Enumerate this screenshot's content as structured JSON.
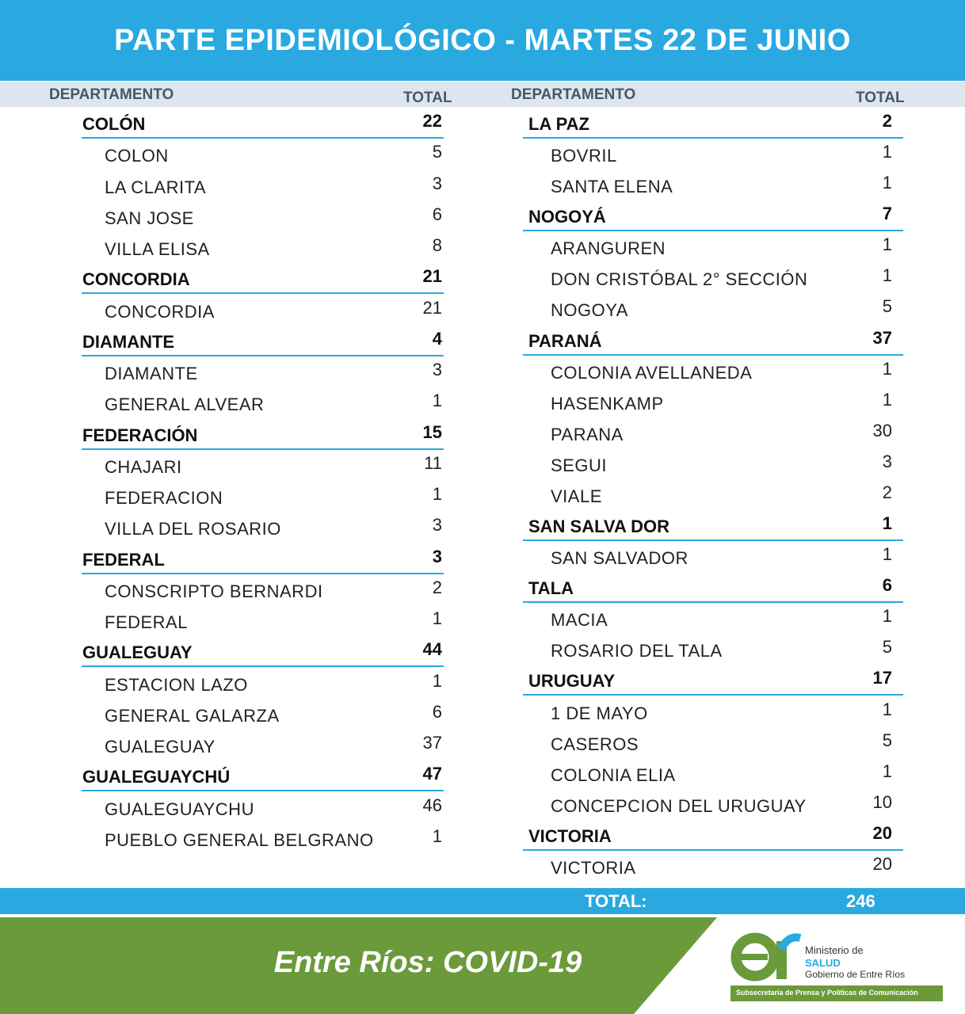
{
  "header": {
    "title": "PARTE EPIDEMIOLÓGICO - MARTES 22 DE JUNIO"
  },
  "table": {
    "headers": [
      [
        "DEPARTAMENTO",
        "TOTAL"
      ],
      [
        "DEPARTAMENTO",
        "TOTAL"
      ]
    ],
    "columns": [
      [
        {
          "name": "COLÓN",
          "total": 22,
          "localities": [
            [
              "COLON",
              5
            ],
            [
              "LA CLARITA",
              3
            ],
            [
              "SAN JOSE",
              6
            ],
            [
              "VILLA ELISA",
              8
            ]
          ]
        },
        {
          "name": "CONCORDIA",
          "total": 21,
          "localities": [
            [
              "CONCORDIA",
              21
            ]
          ]
        },
        {
          "name": "DIAMANTE",
          "total": 4,
          "localities": [
            [
              "DIAMANTE",
              3
            ],
            [
              "GENERAL ALVEAR",
              1
            ]
          ]
        },
        {
          "name": "FEDERACIÓN",
          "total": 15,
          "localities": [
            [
              "CHAJARI",
              11
            ],
            [
              "FEDERACION",
              1
            ],
            [
              "VILLA DEL ROSARIO",
              3
            ]
          ]
        },
        {
          "name": "FEDERAL",
          "total": 3,
          "localities": [
            [
              "CONSCRIPTO BERNARDI",
              2
            ],
            [
              "FEDERAL",
              1
            ]
          ]
        },
        {
          "name": "GUALEGUAY",
          "total": 44,
          "localities": [
            [
              "ESTACION LAZO",
              1
            ],
            [
              "GENERAL GALARZA",
              6
            ],
            [
              "GUALEGUAY",
              37
            ]
          ]
        },
        {
          "name": "GUALEGUAYCHÚ",
          "total": 47,
          "localities": [
            [
              "GUALEGUAYCHU",
              46
            ],
            [
              "PUEBLO GENERAL BELGRANO",
              1
            ]
          ]
        }
      ],
      [
        {
          "name": "LA PAZ",
          "total": 2,
          "localities": [
            [
              "BOVRIL",
              1
            ],
            [
              "SANTA ELENA",
              1
            ]
          ]
        },
        {
          "name": "NOGOYÁ",
          "total": 7,
          "localities": [
            [
              "ARANGUREN",
              1
            ],
            [
              "DON CRISTÓBAL 2° SECCIÓN",
              1
            ],
            [
              "NOGOYA",
              5
            ]
          ]
        },
        {
          "name": "PARANÁ",
          "total": 37,
          "localities": [
            [
              "COLONIA AVELLANEDA",
              1
            ],
            [
              "HASENKAMP",
              1
            ],
            [
              "PARANA",
              30
            ],
            [
              "SEGUI",
              3
            ],
            [
              "VIALE",
              2
            ]
          ]
        },
        {
          "name": "SAN SALVA DOR",
          "total": 1,
          "localities": [
            [
              "SAN SALVADOR",
              1
            ]
          ]
        },
        {
          "name": "TALA",
          "total": 6,
          "localities": [
            [
              "MACIA",
              1
            ],
            [
              "ROSARIO DEL TALA",
              5
            ]
          ]
        },
        {
          "name": "URUGUAY",
          "total": 17,
          "localities": [
            [
              "1 DE MAYO",
              1
            ],
            [
              "CASEROS",
              5
            ],
            [
              "COLONIA ELIA",
              1
            ],
            [
              "CONCEPCION DEL URUGUAY",
              10
            ]
          ]
        },
        {
          "name": "VICTORIA",
          "total": 20,
          "localities": [
            [
              "VICTORIA",
              20
            ]
          ]
        }
      ]
    ]
  },
  "total": {
    "label": "TOTAL:",
    "value": 246
  },
  "footer": {
    "caption": "Entre Ríos: COVID-19",
    "logo": {
      "ministry": "Ministerio de",
      "area": "SALUD",
      "government": "Gobierno de Entre Ríos",
      "office": "Subsecretaria de Prensa y Políticas de Comunicación"
    }
  }
}
